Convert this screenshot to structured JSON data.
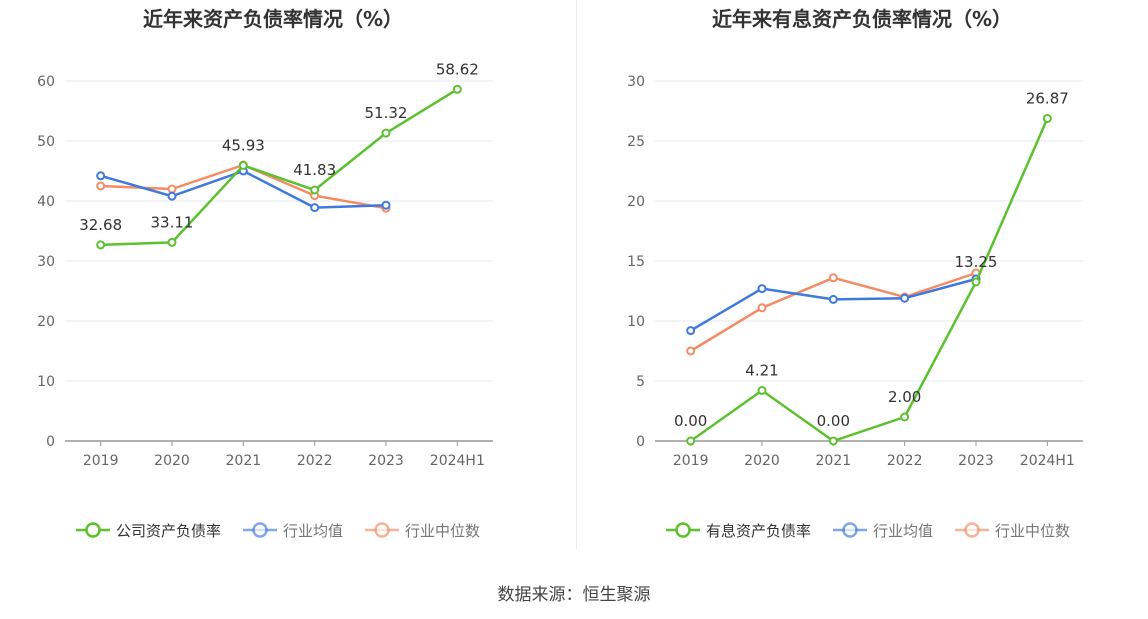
{
  "source": "数据来源：恒生聚源",
  "colors": {
    "company": "#5cc12e",
    "avg": "#3f78df",
    "median": "#f48b65",
    "grid": "#e6e8f0",
    "axis": "#999999",
    "tick": "#666666"
  },
  "chart_data": [
    {
      "type": "line",
      "title": "近年来资产负债率情况（%）",
      "categories": [
        "2019",
        "2020",
        "2021",
        "2022",
        "2023",
        "2024H1"
      ],
      "ylim": [
        0,
        60
      ],
      "yticks": [
        0,
        10,
        20,
        30,
        40,
        50,
        60
      ],
      "grid": true,
      "legend_position": "bottom",
      "series": [
        {
          "name": "公司资产负债率",
          "key": "company",
          "values": [
            32.68,
            33.11,
            45.93,
            41.83,
            51.32,
            58.62
          ],
          "labels": [
            "32.68",
            "33.11",
            "45.93",
            "41.83",
            "51.32",
            "58.62"
          ]
        },
        {
          "name": "行业均值",
          "key": "avg",
          "values": [
            44.2,
            40.8,
            45.0,
            38.9,
            39.3,
            null
          ]
        },
        {
          "name": "行业中位数",
          "key": "median",
          "values": [
            42.5,
            42.0,
            46.0,
            40.9,
            38.8,
            null
          ]
        }
      ]
    },
    {
      "type": "line",
      "title": "近年来有息资产负债率情况（%）",
      "categories": [
        "2019",
        "2020",
        "2021",
        "2022",
        "2023",
        "2024H1"
      ],
      "ylim": [
        0,
        30
      ],
      "yticks": [
        0,
        5,
        10,
        15,
        20,
        25,
        30
      ],
      "grid": true,
      "legend_position": "bottom",
      "series": [
        {
          "name": "有息资产负债率",
          "key": "company",
          "values": [
            0.0,
            4.21,
            0.0,
            2.0,
            13.25,
            26.87
          ],
          "labels": [
            "0.00",
            "4.21",
            "0.00",
            "2.00",
            "13.25",
            "26.87"
          ]
        },
        {
          "name": "行业均值",
          "key": "avg",
          "values": [
            9.2,
            12.7,
            11.8,
            11.9,
            13.5,
            null
          ]
        },
        {
          "name": "行业中位数",
          "key": "median",
          "values": [
            7.5,
            11.1,
            13.6,
            12.0,
            14.0,
            null
          ]
        }
      ]
    }
  ]
}
